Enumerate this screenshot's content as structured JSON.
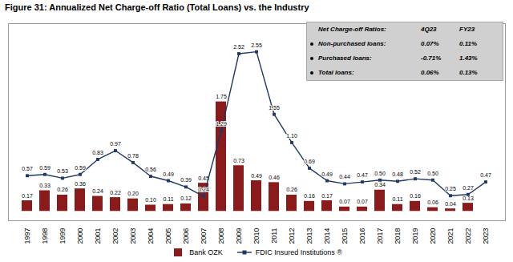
{
  "chart_data": {
    "type": "bar",
    "title": "Figure 31: Annualized Net Charge-off Ratio (Total Loans) vs. the Industry",
    "categories": [
      "1997",
      "1998",
      "1999",
      "2000",
      "2001",
      "2002",
      "2003",
      "2004",
      "2005",
      "2006",
      "2007",
      "2008",
      "2009",
      "2010",
      "2011",
      "2012",
      "2013",
      "2014",
      "2015",
      "2016",
      "2017",
      "2018",
      "2019",
      "2020",
      "2021",
      "2022",
      "2023"
    ],
    "series": [
      {
        "name": "Bank OZK",
        "type": "bar",
        "color": "#8B1A1A",
        "values": [
          0.17,
          0.33,
          0.26,
          0.36,
          0.24,
          0.22,
          0.2,
          0.1,
          0.11,
          0.12,
          0.45,
          1.75,
          0.73,
          0.49,
          0.46,
          0.26,
          0.16,
          0.17,
          0.07,
          0.07,
          0.34,
          0.11,
          0.16,
          0.06,
          0.04,
          0.13,
          0
        ],
        "value_labels": [
          "0.17",
          "0.33",
          "0.26",
          "0.36",
          "0.24",
          "0.22",
          "0.20",
          "0.10",
          "0.11",
          "0.12",
          "0.45",
          "1.75",
          "0.73",
          "0.49",
          "0.46",
          "0.26",
          "0.16",
          "0.17",
          "0.07",
          "0.07",
          "0.34",
          "0.11",
          "0.16",
          "0.06",
          "0.04",
          "0.13",
          null
        ]
      },
      {
        "name": "FDIC Insured Institutions ®",
        "type": "line",
        "color": "#1F3864",
        "marker": "square",
        "values": [
          0.57,
          0.59,
          0.53,
          0.59,
          0.83,
          0.97,
          0.78,
          0.56,
          0.49,
          0.39,
          0.24,
          1.29,
          2.52,
          2.55,
          1.55,
          1.1,
          0.69,
          0.49,
          0.44,
          0.47,
          0.5,
          0.48,
          0.52,
          0.5,
          0.25,
          0.27,
          0.47
        ],
        "value_labels": [
          "0.57",
          "0.59",
          "0.53",
          "0.59",
          "0.83",
          "0.97",
          "0.78",
          "0.56",
          "0.49",
          "0.39",
          "0.24",
          "1.29",
          "2.52",
          "2.55",
          "1.55",
          "1.10",
          "0.69",
          "0.49",
          "0.44",
          "0.47",
          "0.50",
          "0.48",
          "0.52",
          "0.50",
          "0.25",
          "0.27",
          "0.47"
        ]
      }
    ],
    "ylim": [
      -0.15,
      3.0
    ],
    "tick_labels": "x",
    "grid": false,
    "data_labels": true,
    "legend": "bottom",
    "annotations": [
      [
        "Net Charge-off Ratios:",
        "4Q23",
        "FY23"
      ],
      [
        "Non-purchased loans:",
        "0.07%",
        "0.11%"
      ],
      [
        "Purchased loans:",
        "-0.71%",
        "1.43%"
      ],
      [
        "Total loans:",
        "0.06%",
        "0.13%"
      ]
    ]
  }
}
